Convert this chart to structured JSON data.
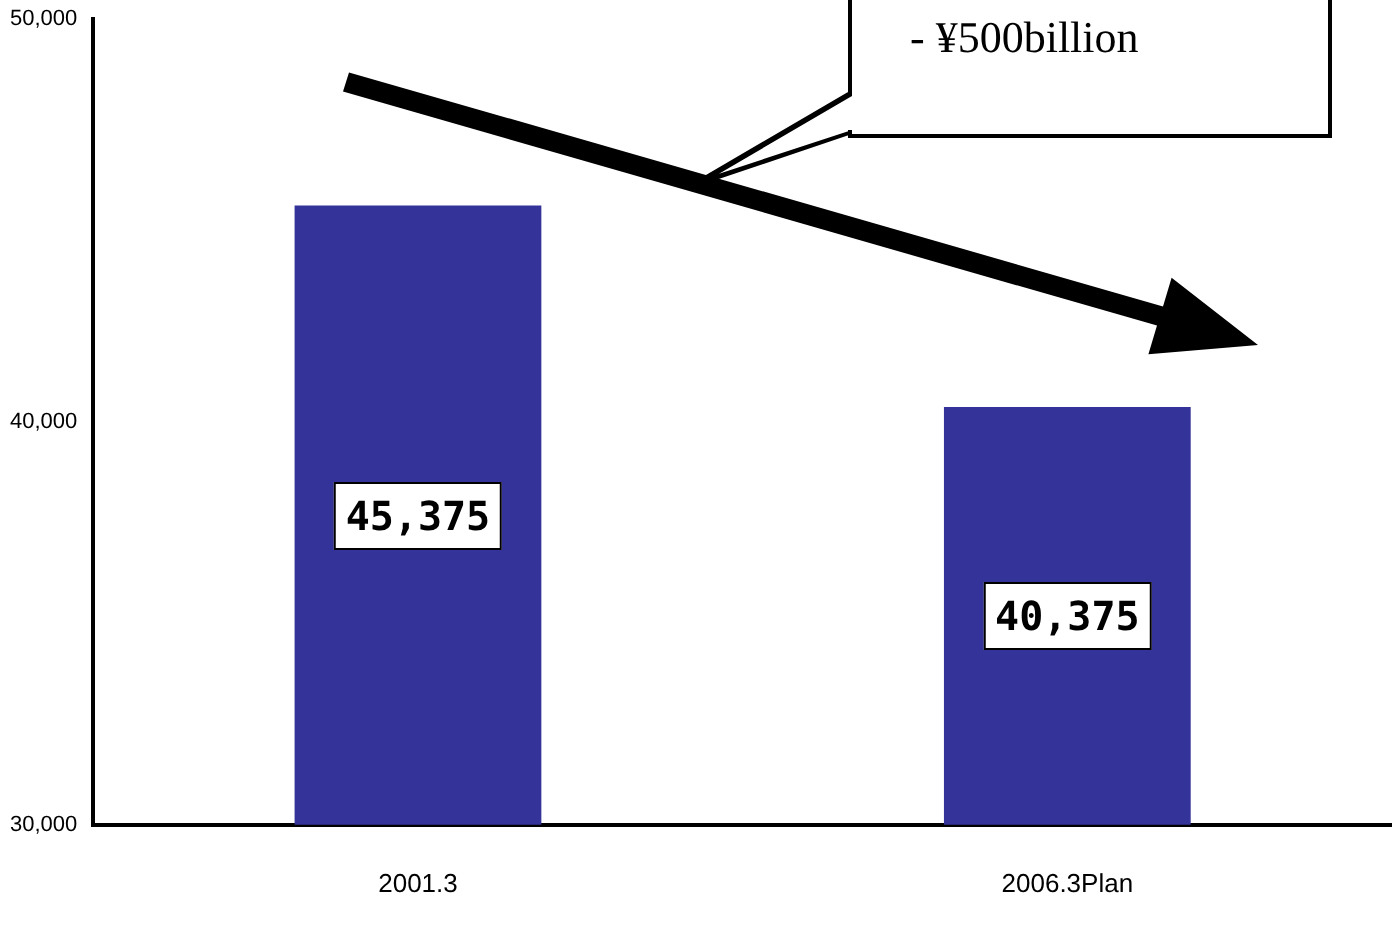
{
  "chart_data": {
    "type": "bar",
    "categories": [
      "2001.3",
      "2006.3Plan"
    ],
    "values": [
      45375,
      40375
    ],
    "color": "#333399",
    "ylim": [
      30000,
      50000
    ],
    "yticks": [
      {
        "value": 30000,
        "label": "30,000"
      },
      {
        "value": 40000,
        "label": "40,000"
      },
      {
        "value": 50000,
        "label": "50,000"
      }
    ],
    "value_labels": [
      "45,375",
      "40,375"
    ],
    "grid": false,
    "legend": false,
    "annotations": [
      "- ¥500billion"
    ]
  }
}
